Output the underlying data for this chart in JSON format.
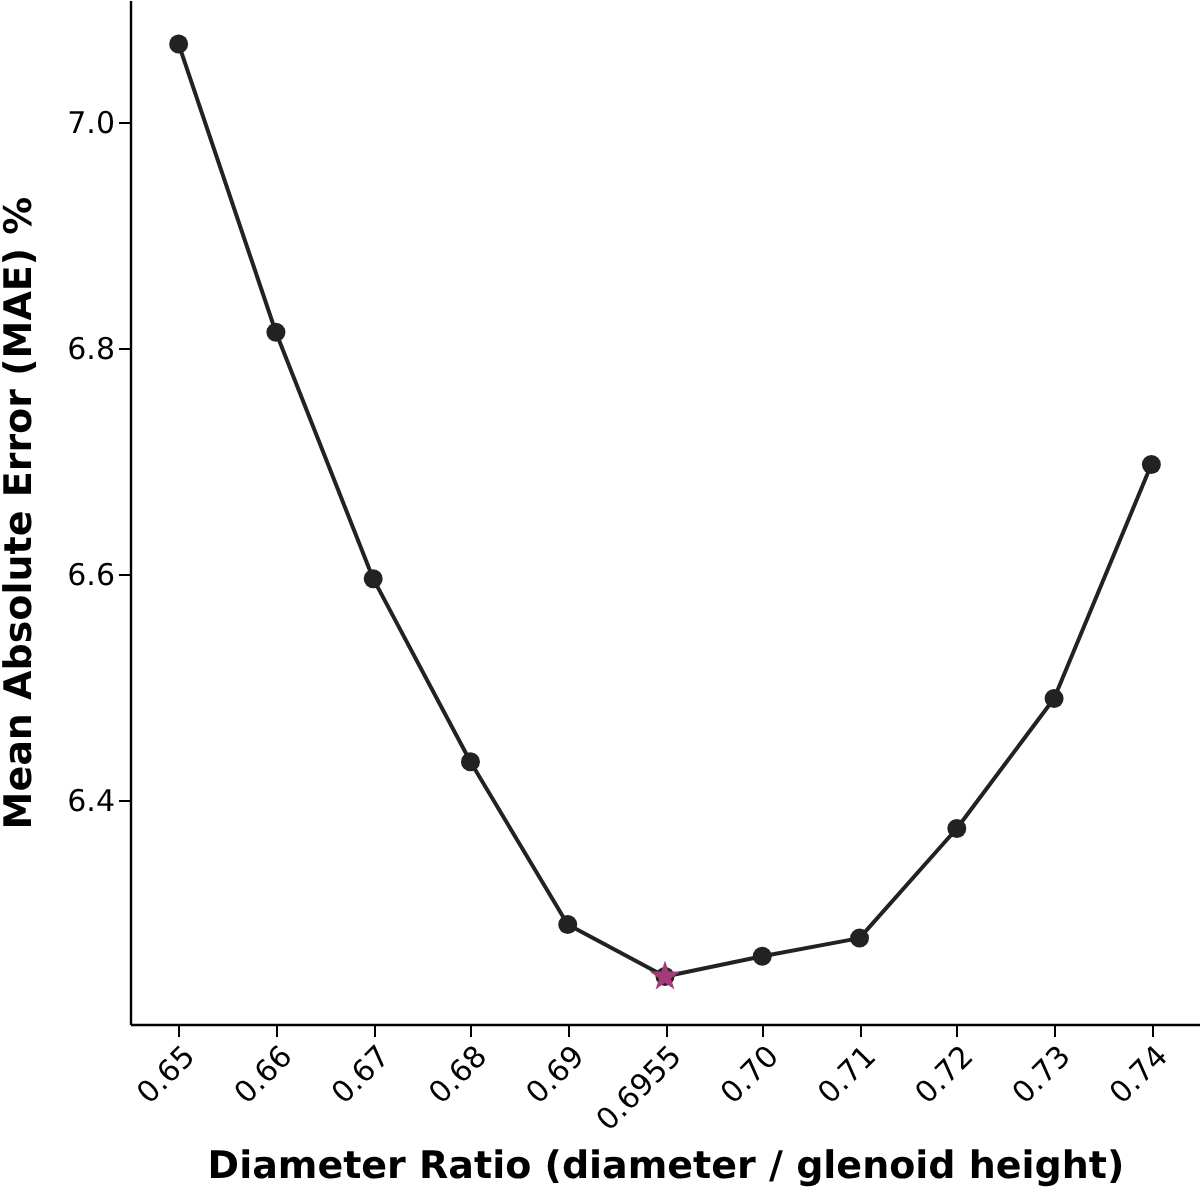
{
  "chart_data": {
    "type": "line",
    "xlabel": "Diameter Ratio (diameter / glenoid height)",
    "ylabel": "Mean Absolute Error (MAE) %",
    "categories": [
      "0.65",
      "0.66",
      "0.67",
      "0.68",
      "0.69",
      "0.6955",
      "0.70",
      "0.71",
      "0.72",
      "0.73",
      "0.74"
    ],
    "series": [
      {
        "color": "#222222",
        "marker": "circle",
        "values": [
          7.069,
          6.814,
          6.596,
          6.434,
          6.29,
          6.244,
          6.262,
          6.278,
          6.375,
          6.49,
          6.697
        ]
      },
      {
        "type": "scatter",
        "color": "#a33b7a",
        "marker": "star",
        "values": [
          null,
          null,
          null,
          null,
          null,
          6.244,
          null,
          null,
          null,
          null,
          null
        ]
      }
    ],
    "ylim": [
      6.202,
      7.108
    ],
    "yticks": [
      6.4,
      6.6,
      6.8,
      {
        "value": 7,
        "label": "7.0"
      }
    ],
    "grid": false
  }
}
